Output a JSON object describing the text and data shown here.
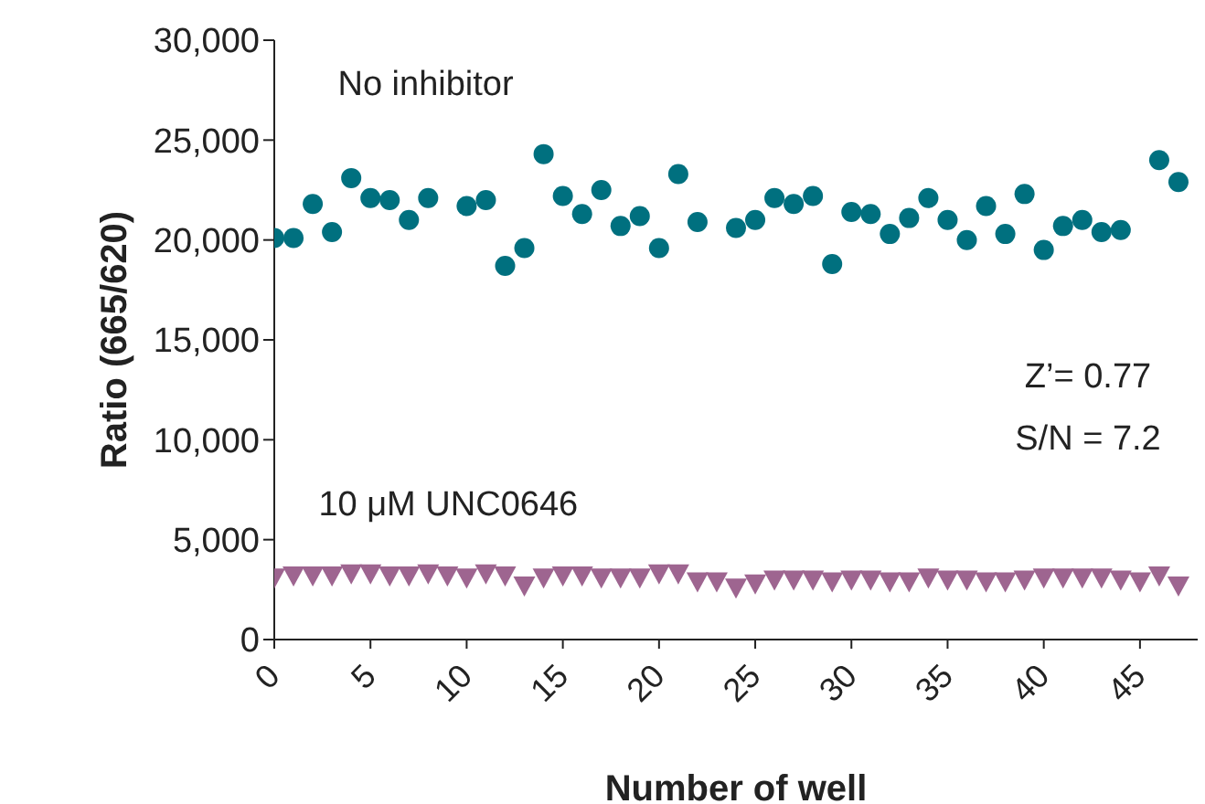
{
  "chart_data": {
    "type": "scatter",
    "xlabel": "Number of well",
    "ylabel": "Ratio (665/620)",
    "x": [
      0,
      1,
      2,
      3,
      4,
      5,
      6,
      7,
      8,
      9,
      10,
      11,
      12,
      13,
      14,
      15,
      16,
      17,
      18,
      19,
      20,
      21,
      22,
      23,
      24,
      25,
      26,
      27,
      28,
      29,
      30,
      31,
      32,
      33,
      34,
      35,
      36,
      37,
      38,
      39,
      40,
      41,
      42,
      43,
      44,
      45,
      46,
      47
    ],
    "series": [
      {
        "name": "No inhibitor",
        "color": "#00707f",
        "marker": "circle",
        "values": [
          20100,
          20100,
          21800,
          20400,
          23100,
          22100,
          22000,
          21000,
          22100,
          null,
          21700,
          22000,
          18700,
          19600,
          24300,
          22200,
          21300,
          22500,
          20700,
          21200,
          19600,
          23300,
          20900,
          null,
          20600,
          21000,
          22100,
          21800,
          22200,
          18800,
          21400,
          21300,
          20300,
          21100,
          22100,
          21000,
          20000,
          21700,
          20300,
          22300,
          19500,
          20700,
          21000,
          20400,
          20500,
          null,
          24000,
          22900
        ]
      },
      {
        "name": "10 μM UNC0646",
        "color": "#9e6590",
        "marker": "triangle",
        "values": [
          3100,
          3200,
          3200,
          3200,
          3300,
          3300,
          3200,
          3200,
          3300,
          3200,
          3100,
          3300,
          3200,
          2700,
          3100,
          3200,
          3200,
          3100,
          3100,
          3100,
          3300,
          3300,
          2900,
          2900,
          2600,
          2800,
          3000,
          3000,
          3000,
          2900,
          3000,
          3000,
          2900,
          2900,
          3100,
          3000,
          3000,
          2900,
          2900,
          3000,
          3100,
          3100,
          3100,
          3100,
          3000,
          2900,
          3200,
          2700
        ]
      }
    ],
    "xlim": [
      0,
      48
    ],
    "xticks": [
      0,
      5,
      10,
      15,
      20,
      25,
      30,
      35,
      40,
      45
    ],
    "ylim": [
      0,
      30000
    ],
    "yticks": [
      {
        "value": 0,
        "label": "0"
      },
      {
        "value": 5000,
        "label": "5,000"
      },
      {
        "value": 10000,
        "label": "10,000"
      },
      {
        "value": 15000,
        "label": "15,000"
      },
      {
        "value": 20000,
        "label": "20,000"
      },
      {
        "value": 25000,
        "label": "25,000"
      },
      {
        "value": 30000,
        "label": "30,000"
      }
    ],
    "grid": false,
    "legend": false,
    "annotations": [
      "Z’= 0.77",
      "S/N = 7.2"
    ]
  }
}
